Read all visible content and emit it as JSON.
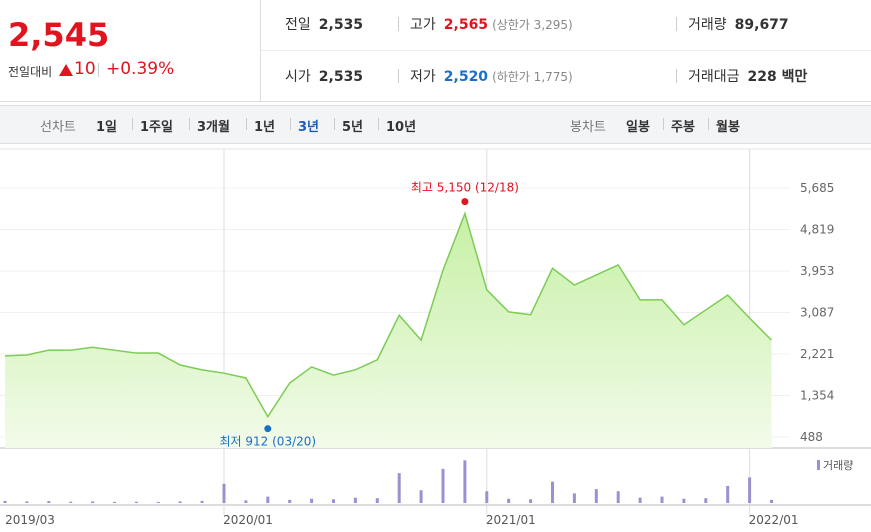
{
  "quote": {
    "price": "2,545",
    "change_label": "전일대비",
    "change": "10",
    "change_pct": "+0.39%",
    "rows": [
      [
        {
          "label": "전일",
          "value": "2,535"
        },
        {
          "label": "고가",
          "value": "2,565",
          "note": "(상한가 3,295)"
        },
        {
          "label": "거래량",
          "value": "89,677"
        }
      ],
      [
        {
          "label": "시가",
          "value": "2,535"
        },
        {
          "label": "저가",
          "value": "2,520",
          "note": "(하한가 1,775)"
        },
        {
          "label": "거래대금",
          "value": "228 백만"
        }
      ]
    ]
  },
  "tabs": {
    "line_label": "선차트",
    "line": [
      "1일",
      "1주일",
      "3개월",
      "1년",
      "3년",
      "5년",
      "10년"
    ],
    "selected": "3년",
    "candle_label": "봉차트",
    "candle": [
      "일봉",
      "주봉",
      "월봉"
    ]
  },
  "chart_data": [
    {
      "type": "line",
      "x": [
        "2019/03",
        "2019/04",
        "2019/05",
        "2019/06",
        "2019/07",
        "2019/08",
        "2019/09",
        "2019/10",
        "2019/11",
        "2019/12",
        "2020/01",
        "2020/02",
        "2020/03",
        "2020/04",
        "2020/05",
        "2020/06",
        "2020/07",
        "2020/08",
        "2020/09",
        "2020/10",
        "2020/11",
        "2020/12",
        "2021/01",
        "2021/02",
        "2021/03",
        "2021/04",
        "2021/05",
        "2021/06",
        "2021/07",
        "2021/08",
        "2021/09",
        "2021/10",
        "2021/11",
        "2021/12",
        "2022/01",
        "2022/02"
      ],
      "series": [
        {
          "name": "종가",
          "color": "#7ccc55",
          "values": [
            2180,
            2200,
            2300,
            2300,
            2360,
            2300,
            2240,
            2240,
            1990,
            1890,
            1820,
            1720,
            912,
            1615,
            1950,
            1780,
            1890,
            2100,
            3030,
            2510,
            3970,
            5150,
            3560,
            3100,
            3040,
            4010,
            3660,
            3870,
            4080,
            3350,
            3350,
            2830,
            3140,
            3450,
            2970,
            2510
          ]
        }
      ],
      "ylim": [
        488,
        5685
      ],
      "yticks": [
        488,
        {
          "value": 1354,
          "label": "1,354"
        },
        {
          "value": 2221,
          "label": "2,221"
        },
        {
          "value": 3087,
          "label": "3,087"
        },
        {
          "value": 3953,
          "label": "3,953"
        },
        {
          "value": 4819,
          "label": "4,819"
        },
        {
          "value": 5685,
          "label": "5,685"
        }
      ],
      "xticks": [
        "2019/03",
        "2020/01",
        "2021/01",
        "2022/01"
      ],
      "annotations": [
        {
          "text": "최고 5,150 (12/18)",
          "index": 21,
          "color": "#e0141e"
        },
        {
          "text": "최저 912 (03/20)",
          "index": 12,
          "color": "#1a6fc8"
        }
      ]
    },
    {
      "type": "bar",
      "series": [
        {
          "name": "거래량",
          "color": "#9d8fd0",
          "values": [
            20000,
            15000,
            18000,
            12000,
            15000,
            10000,
            12000,
            10000,
            15000,
            20000,
            180000,
            25000,
            60000,
            30000,
            40000,
            35000,
            50000,
            45000,
            280000,
            120000,
            320000,
            400000,
            110000,
            40000,
            35000,
            200000,
            90000,
            130000,
            110000,
            50000,
            60000,
            40000,
            45000,
            160000,
            240000,
            30000
          ]
        }
      ],
      "ylim": [
        0,
        450000
      ]
    }
  ]
}
